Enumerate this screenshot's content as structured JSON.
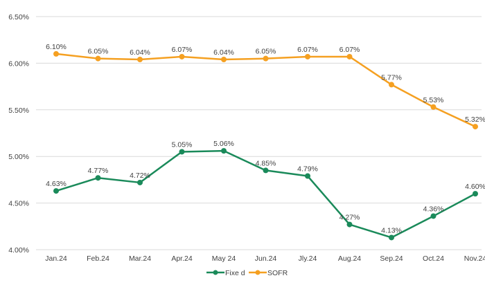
{
  "chart_data": {
    "type": "line",
    "title": "",
    "xlabel": "",
    "ylabel": "",
    "categories": [
      "Jan.24",
      "Feb.24",
      "Mar.24",
      "Apr.24",
      "May 24",
      "Jun.24",
      "Jly.24",
      "Aug.24",
      "Sep.24",
      "Oct.24",
      "Nov.24"
    ],
    "ylim": [
      4.0,
      6.5
    ],
    "yticks": [
      4.0,
      4.5,
      5.0,
      5.5,
      6.0,
      6.5
    ],
    "ytick_labels": [
      "4.00%",
      "4.50%",
      "5.00%",
      "5.50%",
      "6.00%",
      "6.50%"
    ],
    "grid": true,
    "legend_position": "bottom-center",
    "series": [
      {
        "name": "Fixed",
        "legend_label": "Fixe d",
        "color": "#1a8a5a",
        "values": [
          4.63,
          4.77,
          4.72,
          5.05,
          5.06,
          4.85,
          4.79,
          4.27,
          4.13,
          4.36,
          4.6
        ],
        "labels": [
          "4.63%",
          "4.77%",
          "4.72%",
          "5.05%",
          "5.06%",
          "4.85%",
          "4.79%",
          "4.27%",
          "4.13%",
          "4.36%",
          "4.60%"
        ]
      },
      {
        "name": "SOFR",
        "legend_label": "SOFR",
        "color": "#f5a021",
        "values": [
          6.1,
          6.05,
          6.04,
          6.07,
          6.04,
          6.05,
          6.07,
          6.07,
          5.77,
          5.53,
          5.32
        ],
        "labels": [
          "6.10%",
          "6.05%",
          "6.04%",
          "6.07%",
          "6.04%",
          "6.05%",
          "6.07%",
          "6.07%",
          "5.77%",
          "5.53%",
          "5.32%"
        ]
      }
    ]
  }
}
